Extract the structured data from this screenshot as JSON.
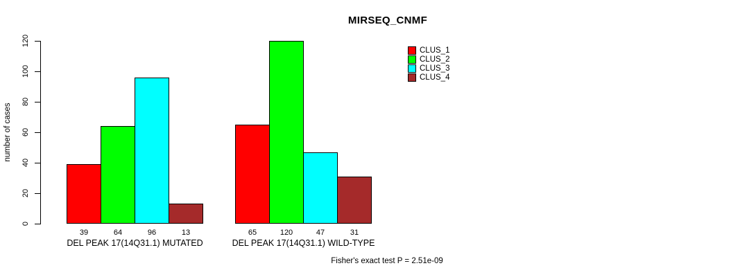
{
  "chart_data": {
    "type": "bar",
    "title": "MIRSEQ_CNMF",
    "ylabel": "number of cases",
    "ylim": [
      0,
      120
    ],
    "yticks": [
      0,
      20,
      40,
      60,
      80,
      100,
      120
    ],
    "grid": false,
    "legend_position": "top-right",
    "legend": [
      {
        "label": "CLUS_1",
        "color": "#FF0000"
      },
      {
        "label": "CLUS_2",
        "color": "#00FF00"
      },
      {
        "label": "CLUS_3",
        "color": "#00FFFF"
      },
      {
        "label": "CLUS_4",
        "color": "#A52A2A"
      }
    ],
    "groups": [
      {
        "label": "DEL PEAK 17(14Q31.1) MUTATED",
        "series": [
          "CLUS_1",
          "CLUS_2",
          "CLUS_3",
          "CLUS_4"
        ],
        "values": [
          39,
          64,
          96,
          13
        ]
      },
      {
        "label": "DEL PEAK 17(14Q31.1) WILD-TYPE",
        "series": [
          "CLUS_1",
          "CLUS_2",
          "CLUS_3",
          "CLUS_4"
        ],
        "values": [
          65,
          120,
          47,
          31
        ]
      }
    ],
    "footnote": "Fisher's exact test P = 2.51e-09"
  }
}
